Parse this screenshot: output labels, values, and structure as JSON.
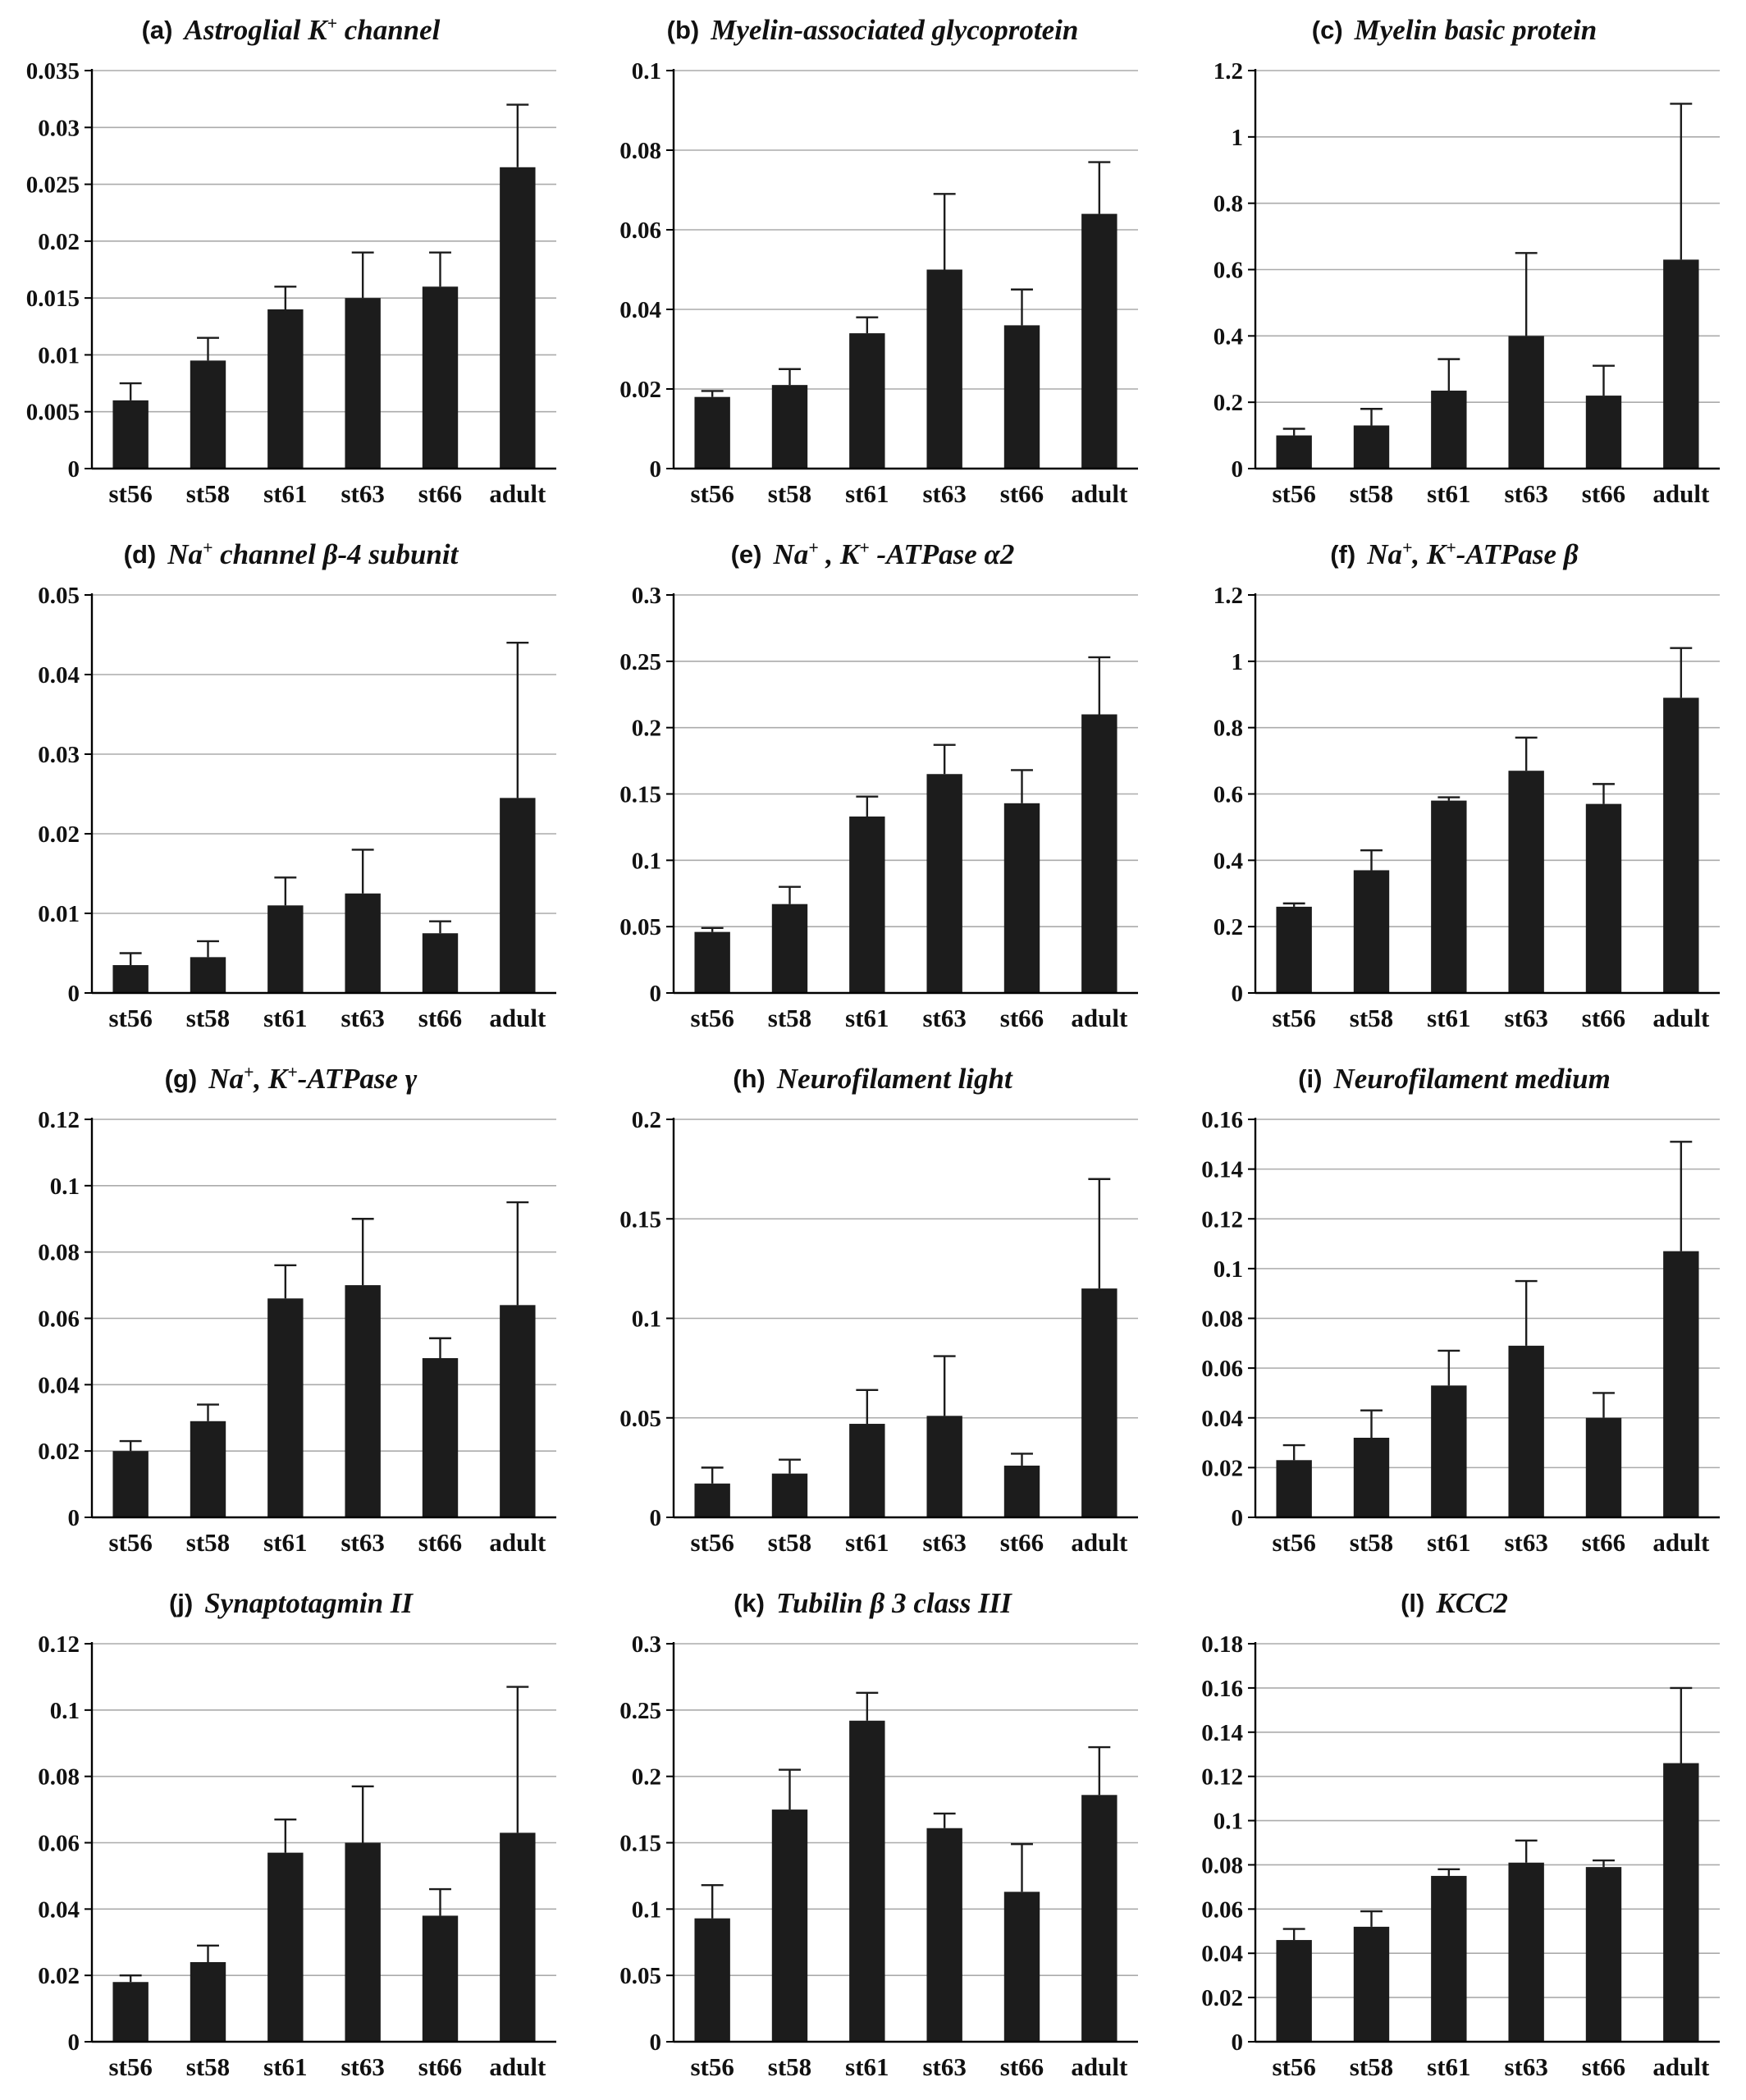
{
  "page": {
    "background": "#ffffff"
  },
  "style": {
    "bar_color": "#1c1c1c",
    "grid_color": "#ababab",
    "axis_color": "#000000",
    "error_color": "#1c1c1c"
  },
  "categories": [
    "st56",
    "st58",
    "st61",
    "st63",
    "st66",
    "adult"
  ],
  "chart_data": [
    {
      "type": "bar",
      "letter": "(a)",
      "title": "Astroglial K⁺ channel",
      "title_parts": [
        {
          "t": "Astroglial K"
        },
        {
          "t": "+",
          "sup": 1
        },
        {
          "t": " channel"
        }
      ],
      "categories": [
        "st56",
        "st58",
        "st61",
        "st63",
        "st66",
        "adult"
      ],
      "values": [
        0.006,
        0.0095,
        0.014,
        0.015,
        0.016,
        0.0265
      ],
      "errors": [
        0.0015,
        0.002,
        0.002,
        0.004,
        0.003,
        0.0055
      ],
      "ylim": [
        0,
        0.035
      ],
      "yticks": [
        0,
        0.005,
        0.01,
        0.015,
        0.02,
        0.025,
        0.03,
        0.035
      ]
    },
    {
      "type": "bar",
      "letter": "(b)",
      "title": "Myelin-associated glycoprotein",
      "title_parts": [
        {
          "t": "Myelin-associated glycoprotein"
        }
      ],
      "categories": [
        "st56",
        "st58",
        "st61",
        "st63",
        "st66",
        "adult"
      ],
      "values": [
        0.018,
        0.021,
        0.034,
        0.05,
        0.036,
        0.064
      ],
      "errors": [
        0.0015,
        0.004,
        0.004,
        0.019,
        0.009,
        0.013
      ],
      "ylim": [
        0,
        0.1
      ],
      "yticks": [
        0,
        0.02,
        0.04,
        0.06,
        0.08,
        0.1
      ]
    },
    {
      "type": "bar",
      "letter": "(c)",
      "title": "Myelin basic protein",
      "title_parts": [
        {
          "t": "Myelin basic protein"
        }
      ],
      "categories": [
        "st56",
        "st58",
        "st61",
        "st63",
        "st66",
        "adult"
      ],
      "values": [
        0.1,
        0.13,
        0.235,
        0.4,
        0.22,
        0.63
      ],
      "errors": [
        0.02,
        0.05,
        0.095,
        0.25,
        0.09,
        0.47
      ],
      "ylim": [
        0,
        1.2
      ],
      "yticks": [
        0,
        0.2,
        0.4,
        0.6,
        0.8,
        1,
        1.2
      ]
    },
    {
      "type": "bar",
      "letter": "(d)",
      "title": "Na⁺ channel β-4 subunit",
      "title_parts": [
        {
          "t": "Na"
        },
        {
          "t": "+",
          "sup": 1
        },
        {
          "t": " channel β-4 subunit"
        }
      ],
      "categories": [
        "st56",
        "st58",
        "st61",
        "st63",
        "st66",
        "adult"
      ],
      "values": [
        0.0035,
        0.0045,
        0.011,
        0.0125,
        0.0075,
        0.0245
      ],
      "errors": [
        0.0015,
        0.002,
        0.0035,
        0.0055,
        0.0015,
        0.0195
      ],
      "ylim": [
        0,
        0.05
      ],
      "yticks": [
        0,
        0.01,
        0.02,
        0.03,
        0.04,
        0.05
      ]
    },
    {
      "type": "bar",
      "letter": "(e)",
      "title": "Na⁺ , K⁺ -ATPase α2",
      "title_parts": [
        {
          "t": "Na"
        },
        {
          "t": "+",
          "sup": 1
        },
        {
          "t": " , K"
        },
        {
          "t": "+",
          "sup": 1
        },
        {
          "t": " -ATPase α2"
        }
      ],
      "categories": [
        "st56",
        "st58",
        "st61",
        "st63",
        "st66",
        "adult"
      ],
      "values": [
        0.046,
        0.067,
        0.133,
        0.165,
        0.143,
        0.21
      ],
      "errors": [
        0.003,
        0.013,
        0.015,
        0.022,
        0.025,
        0.043
      ],
      "ylim": [
        0,
        0.3
      ],
      "yticks": [
        0,
        0.05,
        0.1,
        0.15,
        0.2,
        0.25,
        0.3
      ]
    },
    {
      "type": "bar",
      "letter": "(f)",
      "title": "Na⁺, K⁺-ATPase β",
      "title_parts": [
        {
          "t": "Na"
        },
        {
          "t": "+",
          "sup": 1
        },
        {
          "t": ", K"
        },
        {
          "t": "+",
          "sup": 1
        },
        {
          "t": "-ATPase β"
        }
      ],
      "categories": [
        "st56",
        "st58",
        "st61",
        "st63",
        "st66",
        "adult"
      ],
      "values": [
        0.26,
        0.37,
        0.58,
        0.67,
        0.57,
        0.89
      ],
      "errors": [
        0.01,
        0.06,
        0.01,
        0.1,
        0.06,
        0.15
      ],
      "ylim": [
        0,
        1.2
      ],
      "yticks": [
        0,
        0.2,
        0.4,
        0.6,
        0.8,
        1,
        1.2
      ]
    },
    {
      "type": "bar",
      "letter": "(g)",
      "title": "Na⁺, K⁺-ATPase γ",
      "title_parts": [
        {
          "t": "Na"
        },
        {
          "t": "+",
          "sup": 1
        },
        {
          "t": ", K"
        },
        {
          "t": "+",
          "sup": 1
        },
        {
          "t": "-ATPase γ"
        }
      ],
      "categories": [
        "st56",
        "st58",
        "st61",
        "st63",
        "st66",
        "adult"
      ],
      "values": [
        0.02,
        0.029,
        0.066,
        0.07,
        0.048,
        0.064
      ],
      "errors": [
        0.003,
        0.005,
        0.01,
        0.02,
        0.006,
        0.031
      ],
      "ylim": [
        0,
        0.12
      ],
      "yticks": [
        0,
        0.02,
        0.04,
        0.06,
        0.08,
        0.1,
        0.12
      ]
    },
    {
      "type": "bar",
      "letter": "(h)",
      "title": "Neurofilament light",
      "title_parts": [
        {
          "t": "Neurofilament light"
        }
      ],
      "categories": [
        "st56",
        "st58",
        "st61",
        "st63",
        "st66",
        "adult"
      ],
      "values": [
        0.017,
        0.022,
        0.047,
        0.051,
        0.026,
        0.115
      ],
      "errors": [
        0.008,
        0.007,
        0.017,
        0.03,
        0.006,
        0.055
      ],
      "ylim": [
        0,
        0.2
      ],
      "yticks": [
        0,
        0.05,
        0.1,
        0.15,
        0.2
      ]
    },
    {
      "type": "bar",
      "letter": "(i)",
      "title": "Neurofilament medium",
      "title_parts": [
        {
          "t": "Neurofilament medium"
        }
      ],
      "categories": [
        "st56",
        "st58",
        "st61",
        "st63",
        "st66",
        "adult"
      ],
      "values": [
        0.023,
        0.032,
        0.053,
        0.069,
        0.04,
        0.107
      ],
      "errors": [
        0.006,
        0.011,
        0.014,
        0.026,
        0.01,
        0.044
      ],
      "ylim": [
        0,
        0.16
      ],
      "yticks": [
        0,
        0.02,
        0.04,
        0.06,
        0.08,
        0.1,
        0.12,
        0.14,
        0.16
      ]
    },
    {
      "type": "bar",
      "letter": "(j)",
      "title": "Synaptotagmin II",
      "title_parts": [
        {
          "t": "Synaptotagmin II"
        }
      ],
      "categories": [
        "st56",
        "st58",
        "st61",
        "st63",
        "st66",
        "adult"
      ],
      "values": [
        0.018,
        0.024,
        0.057,
        0.06,
        0.038,
        0.063
      ],
      "errors": [
        0.002,
        0.005,
        0.01,
        0.017,
        0.008,
        0.044
      ],
      "ylim": [
        0,
        0.12
      ],
      "yticks": [
        0,
        0.02,
        0.04,
        0.06,
        0.08,
        0.1,
        0.12
      ]
    },
    {
      "type": "bar",
      "letter": "(k)",
      "title": "Tubilin β 3 class III",
      "title_parts": [
        {
          "t": "Tubilin β 3 class III"
        }
      ],
      "categories": [
        "st56",
        "st58",
        "st61",
        "st63",
        "st66",
        "adult"
      ],
      "values": [
        0.093,
        0.175,
        0.242,
        0.161,
        0.113,
        0.186
      ],
      "errors": [
        0.025,
        0.03,
        0.021,
        0.011,
        0.036,
        0.036
      ],
      "ylim": [
        0,
        0.3
      ],
      "yticks": [
        0,
        0.05,
        0.1,
        0.15,
        0.2,
        0.25,
        0.3
      ]
    },
    {
      "type": "bar",
      "letter": "(l)",
      "title": "KCC2",
      "title_parts": [
        {
          "t": "KCC2"
        }
      ],
      "categories": [
        "st56",
        "st58",
        "st61",
        "st63",
        "st66",
        "adult"
      ],
      "values": [
        0.046,
        0.052,
        0.075,
        0.081,
        0.079,
        0.126
      ],
      "errors": [
        0.005,
        0.007,
        0.003,
        0.01,
        0.003,
        0.034
      ],
      "ylim": [
        0,
        0.18
      ],
      "yticks": [
        0,
        0.02,
        0.04,
        0.06,
        0.08,
        0.1,
        0.12,
        0.14,
        0.16,
        0.18
      ]
    }
  ]
}
